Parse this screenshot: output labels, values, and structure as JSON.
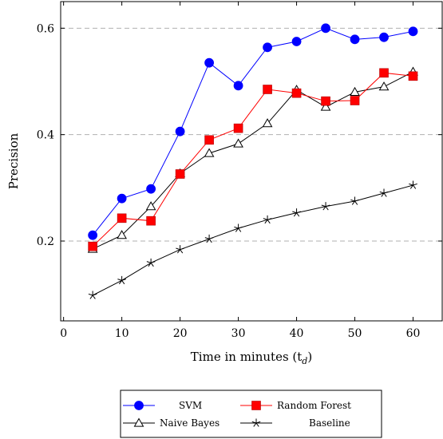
{
  "chart_data": {
    "type": "line",
    "xlabel": "Time in minutes (t",
    "xlabel_sub": "d",
    "xlabel_suffix": ")",
    "ylabel": "Precision",
    "xlim": [
      -0.5,
      65
    ],
    "ylim": [
      0.05,
      0.65
    ],
    "x_ticks": [
      0,
      10,
      20,
      30,
      40,
      50,
      60
    ],
    "y_ticks": [
      0.2,
      0.4,
      0.6
    ],
    "y_gridlines": true,
    "legend_position": "bottom-center",
    "x": [
      5,
      10,
      15,
      20,
      25,
      30,
      35,
      40,
      45,
      50,
      55,
      60
    ],
    "series": [
      {
        "name": "SVM",
        "color": "#0000ff",
        "marker": "circle",
        "values": [
          0.211,
          0.28,
          0.298,
          0.406,
          0.535,
          0.492,
          0.564,
          0.575,
          0.6,
          0.579,
          0.583,
          0.594
        ]
      },
      {
        "name": "Random Forest",
        "color": "#ff0000",
        "marker": "square",
        "values": [
          0.19,
          0.243,
          0.238,
          0.326,
          0.39,
          0.412,
          0.485,
          0.478,
          0.463,
          0.464,
          0.516,
          0.51
        ]
      },
      {
        "name": "Naive Bayes",
        "color": "#000000",
        "marker": "triangle",
        "values": [
          0.185,
          0.211,
          0.265,
          0.327,
          0.365,
          0.383,
          0.421,
          0.484,
          0.452,
          0.48,
          0.49,
          0.518
        ]
      },
      {
        "name": "Baseline",
        "color": "#000000",
        "marker": "star",
        "values": [
          0.098,
          0.126,
          0.159,
          0.184,
          0.204,
          0.224,
          0.24,
          0.253,
          0.265,
          0.275,
          0.29,
          0.305
        ]
      }
    ]
  }
}
